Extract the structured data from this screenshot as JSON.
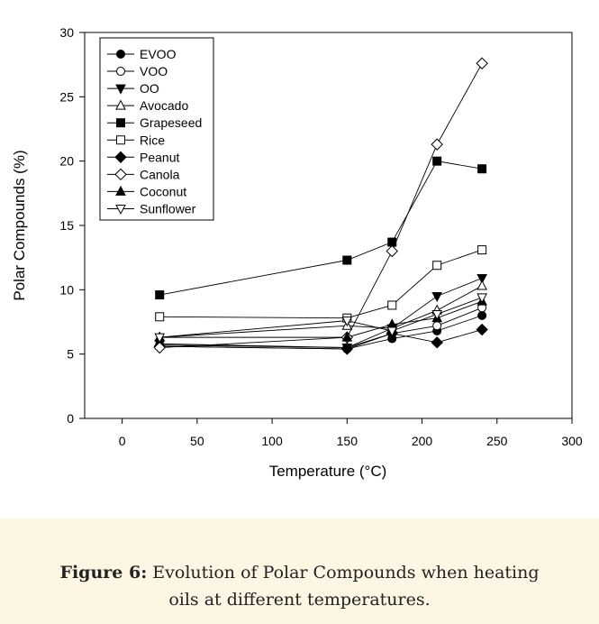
{
  "caption": {
    "label": "Figure 6:",
    "text_line1": "Evolution of Polar Compounds when heating",
    "text_line2": "oils at different temperatures."
  },
  "chart_data": {
    "type": "line",
    "xlabel": "Temperature (°C)",
    "ylabel": "Polar Compounds (%)",
    "xlim": [
      -25,
      300
    ],
    "ylim": [
      0,
      30
    ],
    "xticks": [
      0,
      50,
      100,
      150,
      200,
      250,
      300
    ],
    "yticks": [
      0,
      5,
      10,
      15,
      20,
      25,
      30
    ],
    "grid": false,
    "legend_position": "top-left",
    "x": [
      25,
      150,
      180,
      210,
      240
    ],
    "series": [
      {
        "name": "EVOO",
        "marker": "filled-circle",
        "values": [
          5.6,
          5.4,
          6.2,
          6.8,
          8.0
        ]
      },
      {
        "name": "VOO",
        "marker": "open-circle",
        "values": [
          5.7,
          5.5,
          6.6,
          7.2,
          8.6
        ]
      },
      {
        "name": "OO",
        "marker": "filled-triangle-down",
        "values": [
          5.8,
          5.5,
          7.0,
          9.5,
          10.9
        ]
      },
      {
        "name": "Avocado",
        "marker": "open-triangle-up",
        "values": [
          6.3,
          7.2,
          7.0,
          8.4,
          10.3
        ]
      },
      {
        "name": "Grapeseed",
        "marker": "filled-square",
        "values": [
          9.6,
          12.3,
          13.7,
          20.0,
          19.4
        ]
      },
      {
        "name": "Rice",
        "marker": "open-square",
        "values": [
          7.9,
          7.8,
          8.8,
          11.9,
          13.1
        ]
      },
      {
        "name": "Peanut",
        "marker": "filled-diamond",
        "values": [
          5.6,
          5.4,
          6.6,
          5.9,
          6.9
        ]
      },
      {
        "name": "Canola",
        "marker": "open-diamond",
        "values": [
          5.5,
          6.3,
          13.0,
          21.3,
          27.6
        ]
      },
      {
        "name": "Coconut",
        "marker": "filled-triangle-up",
        "values": [
          6.3,
          6.3,
          7.3,
          7.8,
          9.1
        ]
      },
      {
        "name": "Sunflower",
        "marker": "open-triangle-down",
        "values": [
          6.3,
          7.6,
          6.8,
          8.1,
          9.4
        ]
      }
    ]
  }
}
